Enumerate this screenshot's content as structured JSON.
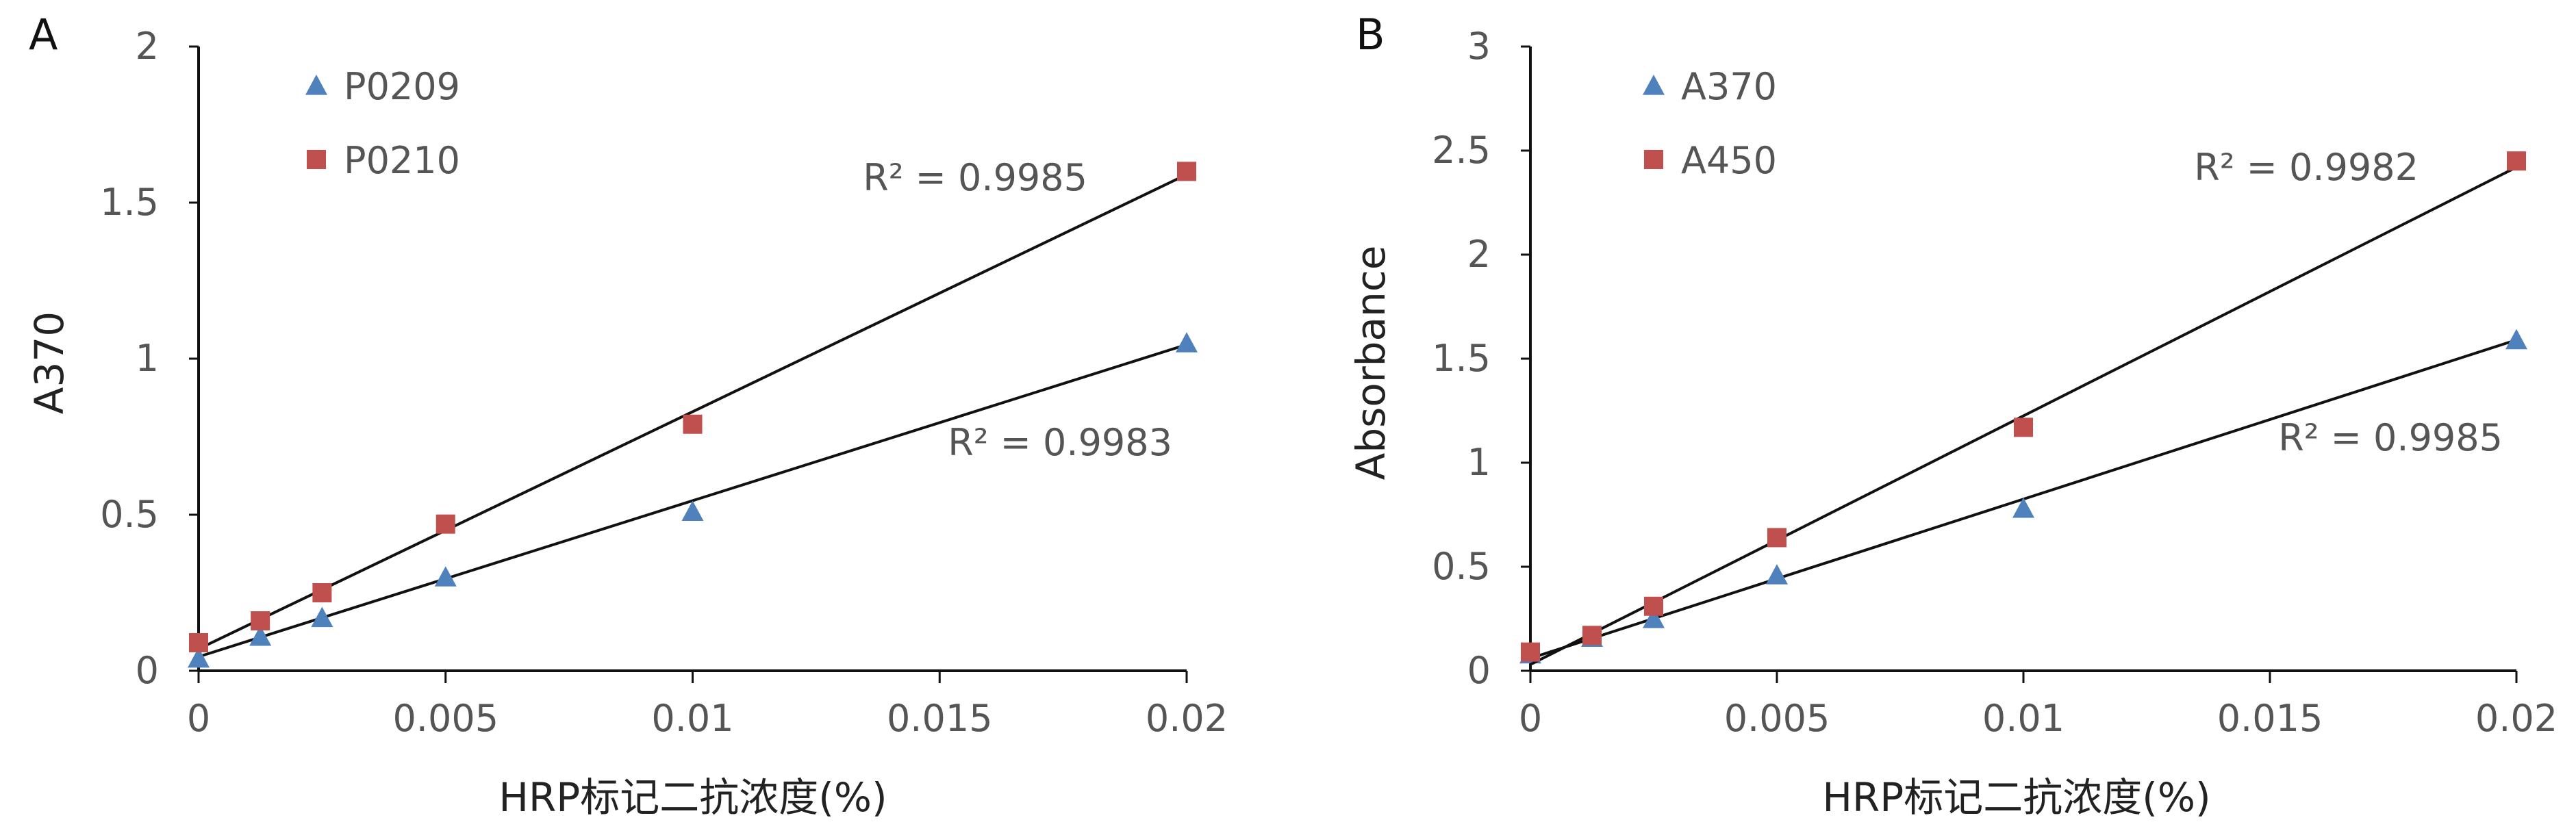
{
  "chart_data": [
    {
      "type": "scatter",
      "panel_label": "A",
      "xlabel": "HRP标记二抗浓度(%)",
      "ylabel": "A370",
      "xlim": [
        0,
        0.02
      ],
      "ylim": [
        0,
        2
      ],
      "x_ticks": [
        "0",
        "0.005",
        "0.01",
        "0.015",
        "0.02"
      ],
      "y_ticks": [
        "0",
        "0.5",
        "1",
        "1.5",
        "2"
      ],
      "legend_position": "top-left",
      "grid": false,
      "series": [
        {
          "name": "P0209",
          "marker": "triangle",
          "color": "#4F81BD",
          "x": [
            0,
            0.00125,
            0.0025,
            0.005,
            0.01,
            0.02
          ],
          "y": [
            0.04,
            0.11,
            0.17,
            0.3,
            0.51,
            1.05
          ],
          "trendline": {
            "intercept": 0.045,
            "slope": 50.0,
            "r2_label": "R² = 0.9983"
          }
        },
        {
          "name": "P0210",
          "marker": "square",
          "color": "#C0504D",
          "x": [
            0,
            0.00125,
            0.0025,
            0.005,
            0.01,
            0.02
          ],
          "y": [
            0.09,
            0.16,
            0.25,
            0.47,
            0.79,
            1.6
          ],
          "trendline": {
            "intercept": 0.07,
            "slope": 76.0,
            "r2_label": "R² = 0.9985"
          }
        }
      ]
    },
    {
      "type": "scatter",
      "panel_label": "B",
      "xlabel": "HRP标记二抗浓度(%)",
      "ylabel": "Absorbance",
      "xlim": [
        0,
        0.02
      ],
      "ylim": [
        0,
        3
      ],
      "x_ticks": [
        "0",
        "0.005",
        "0.01",
        "0.015",
        "0.02"
      ],
      "y_ticks": [
        "0",
        "0.5",
        "1",
        "1.5",
        "2",
        "2.5",
        "3"
      ],
      "legend_position": "top-left",
      "grid": false,
      "series": [
        {
          "name": "A370",
          "marker": "triangle",
          "color": "#4F81BD",
          "x": [
            0,
            0.00125,
            0.0025,
            0.005,
            0.01,
            0.02
          ],
          "y": [
            0.08,
            0.16,
            0.25,
            0.46,
            0.78,
            1.59
          ],
          "trendline": {
            "intercept": 0.06,
            "slope": 76.5,
            "r2_label": "R² = 0.9985"
          }
        },
        {
          "name": "A450",
          "marker": "square",
          "color": "#C0504D",
          "x": [
            0,
            0.00125,
            0.0025,
            0.005,
            0.01,
            0.02
          ],
          "y": [
            0.09,
            0.17,
            0.31,
            0.64,
            1.17,
            2.45
          ],
          "trendline": {
            "intercept": 0.03,
            "slope": 119.5,
            "r2_label": "R² = 0.9982"
          }
        }
      ]
    }
  ]
}
